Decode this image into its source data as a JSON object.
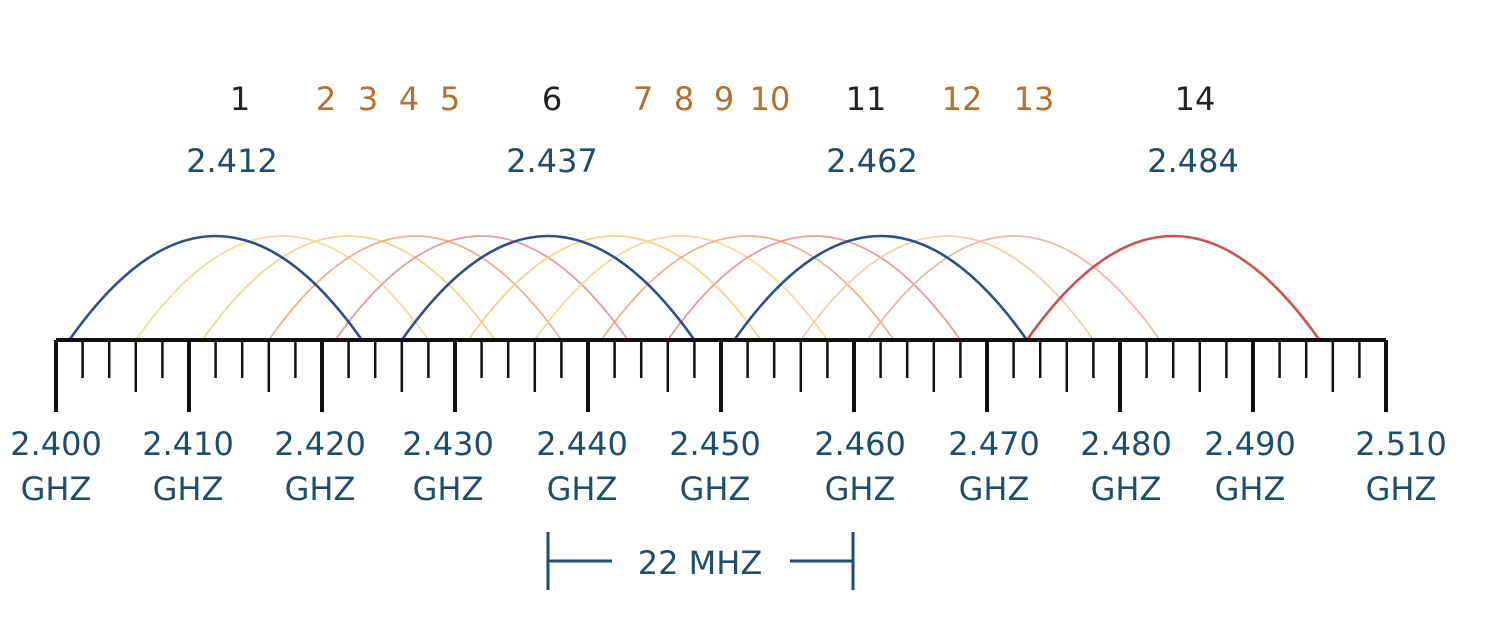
{
  "colors": {
    "primary_channel": "#222222",
    "overlap_channel": "#b5702a",
    "frequency_text": "#1f4e68",
    "primary_arc": "#2e4e86",
    "channel14_arc": "#d05050",
    "ruler": "#111111"
  },
  "channels": [
    {
      "label": "1",
      "primary": true,
      "center_mhz": 2412
    },
    {
      "label": "2",
      "primary": false,
      "center_mhz": 2417
    },
    {
      "label": "3",
      "primary": false,
      "center_mhz": 2422
    },
    {
      "label": "4",
      "primary": false,
      "center_mhz": 2427
    },
    {
      "label": "5",
      "primary": false,
      "center_mhz": 2432
    },
    {
      "label": "6",
      "primary": true,
      "center_mhz": 2437
    },
    {
      "label": "7",
      "primary": false,
      "center_mhz": 2442
    },
    {
      "label": "8",
      "primary": false,
      "center_mhz": 2447
    },
    {
      "label": "9",
      "primary": false,
      "center_mhz": 2452
    },
    {
      "label": "10",
      "primary": false,
      "center_mhz": 2457
    },
    {
      "label": "11",
      "primary": true,
      "center_mhz": 2462
    },
    {
      "label": "12",
      "primary": false,
      "center_mhz": 2467
    },
    {
      "label": "13",
      "primary": false,
      "center_mhz": 2472
    },
    {
      "label": "14",
      "primary": true,
      "center_mhz": 2484
    }
  ],
  "center_frequencies": [
    "2.412",
    "2.437",
    "2.462",
    "2.484"
  ],
  "axis": {
    "labels": [
      "2.400",
      "2.410",
      "2.420",
      "2.430",
      "2.440",
      "2.450",
      "2.460",
      "2.470",
      "2.480",
      "2.490",
      "2.510"
    ],
    "unit": "GHZ"
  },
  "channel_width": {
    "label": "22 MHZ",
    "value_mhz": 22
  },
  "arc_colors": [
    "#2e4e86",
    "#f2d890",
    "#f0d080",
    "#e8a880",
    "#e59090",
    "#2e4e86",
    "#f0d080",
    "#f5d590",
    "#e8a880",
    "#e89090",
    "#2e4e86",
    "#f0c8a0",
    "#e8b0a0",
    "#d05050"
  ]
}
